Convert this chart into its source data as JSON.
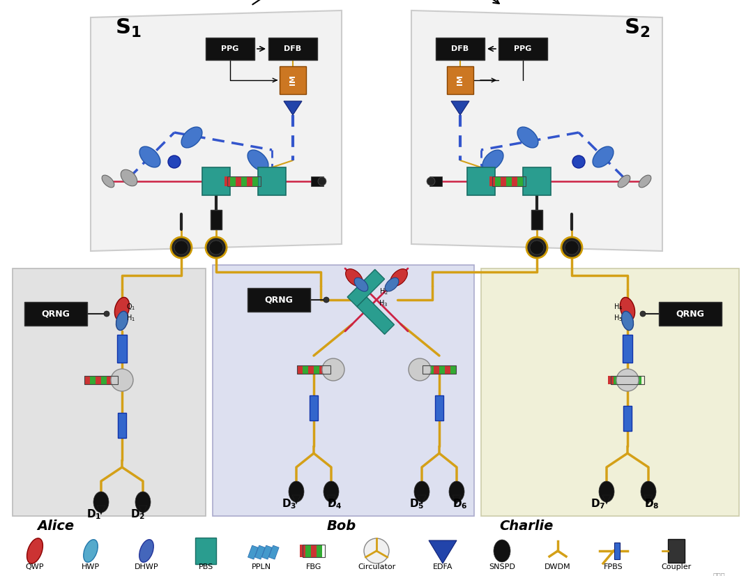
{
  "bg_color": "#ffffff",
  "fiber_color": "#d4a017",
  "beam_red": "#cc2244",
  "beam_blue_dashed": "#3355cc",
  "panel_s_color": "#f0f0f0",
  "panel_alice_color": "#e0e0e0",
  "panel_bob_color": "#dde0f0",
  "panel_charlie_color": "#f0f0d8",
  "box_black": "#111111",
  "box_orange": "#cc7722",
  "pbs_color": "#2a9d8f",
  "legend_labels": [
    "QWP",
    "HWP",
    "DHWP",
    "PBS",
    "PPLN",
    "FBG",
    "Circulator",
    "EDFA",
    "SNSPD",
    "DWDM",
    "FPBS",
    "Coupler"
  ]
}
